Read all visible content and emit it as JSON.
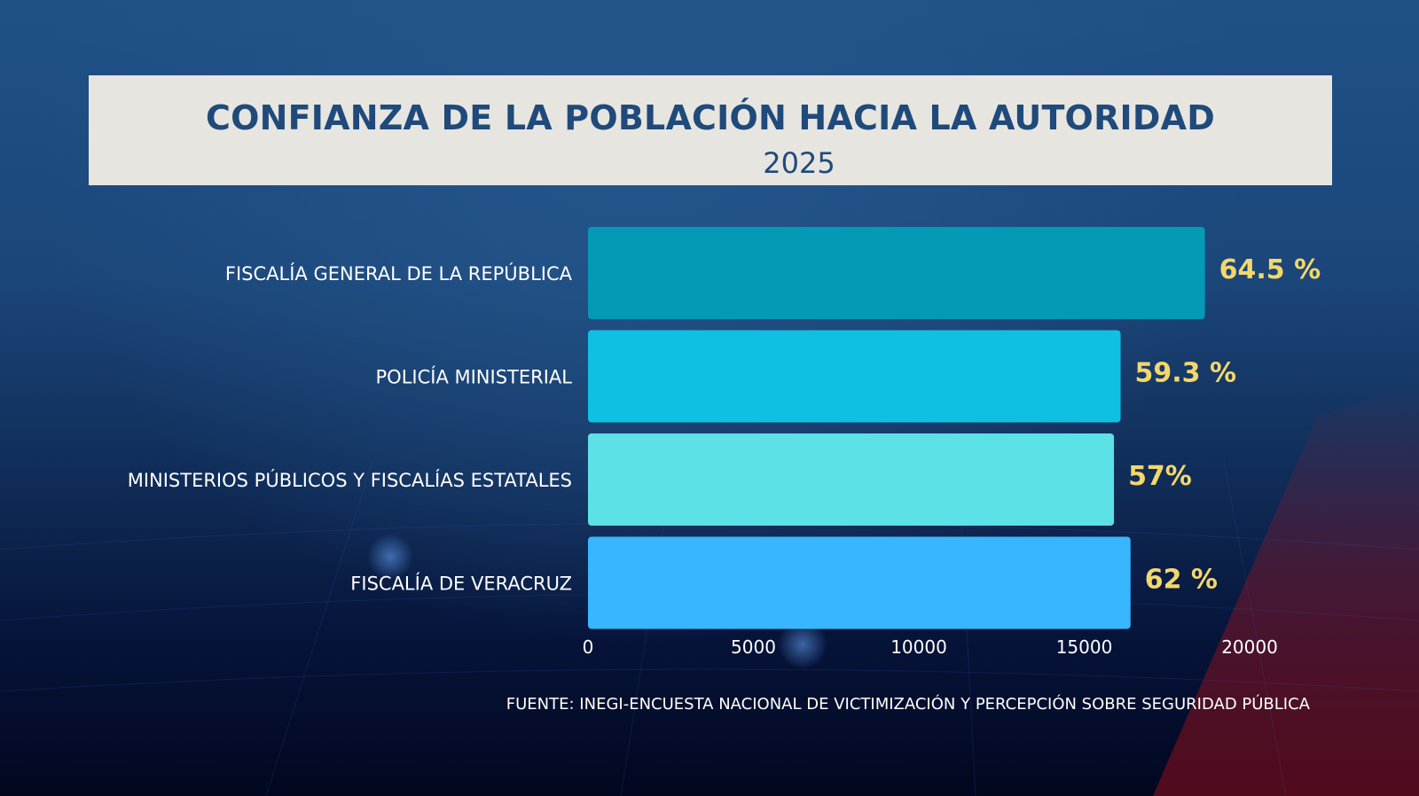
{
  "header": {
    "title": "CONFIANZA DE LA POBLACIÓN HACIA LA AUTORIDAD",
    "subtitle": "2025"
  },
  "source": "FUENTE: INEGI-ENCUESTA NACIONAL DE VICTIMIZACIÓN Y PERCEPCIÓN SOBRE SEGURIDAD PÚBLICA",
  "chart_data": {
    "type": "bar",
    "orientation": "horizontal",
    "title": "CONFIANZA DE LA POBLACIÓN HACIA LA AUTORIDAD",
    "subtitle": "2025",
    "xlabel": "",
    "ylabel": "",
    "xlim": [
      0,
      20000
    ],
    "x_ticks": [
      "0",
      "5000",
      "10000",
      "15000",
      "20000"
    ],
    "x_tick_values": [
      0,
      5000,
      10000,
      15000,
      20000
    ],
    "grid": false,
    "legend": "none",
    "categories": [
      "FISCALÍA GENERAL DE LA REPÚBLICA",
      "POLICÍA MINISTERIAL",
      "MINISTERIOS PÚBLICOS Y FISCALÍAS ESTATALES",
      "FISCALÍA DE VERACRUZ"
    ],
    "values": [
      18650,
      16100,
      15900,
      16400
    ],
    "data_labels": [
      "64.5 %",
      "59.3 %",
      "57%",
      "62 %"
    ],
    "colors": [
      "#0499b5",
      "#10c0e2",
      "#5ce1e6",
      "#38b6ff"
    ]
  },
  "colors": {
    "title_box": "#e7e5df",
    "title_text": "#1f4a7b",
    "value_label": "#f4d76a"
  }
}
